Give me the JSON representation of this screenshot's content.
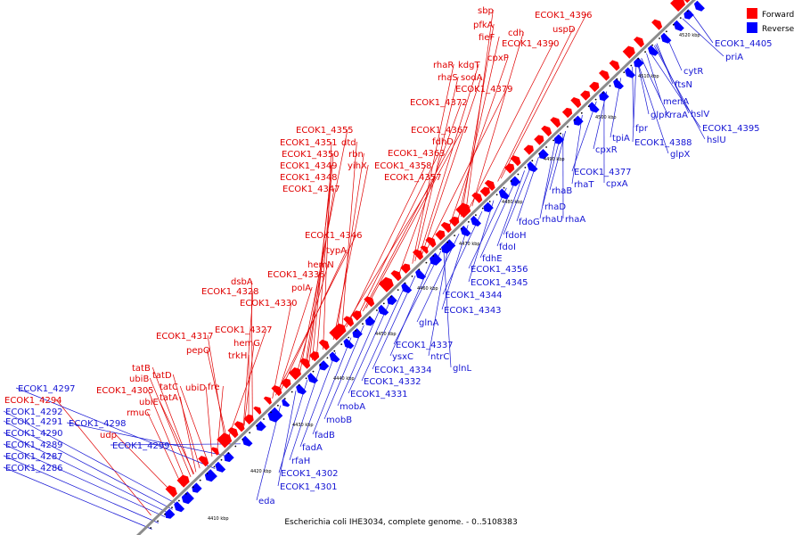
{
  "caption": "Escherichia coli IHE3034, complete genome. - 0..5108383",
  "legend": [
    {
      "label": "Forward",
      "color": "#ff0000"
    },
    {
      "label": "Reverse",
      "color": "#0000ff"
    }
  ],
  "colors": {
    "forward": "#ff0000",
    "reverse": "#0000ff",
    "forward_label": "#e00000",
    "reverse_label": "#1414d4",
    "backbone": "#909090"
  },
  "ticks": [
    "4410 kbp",
    "4420 kbp",
    "4430 kbp",
    "4440 kbp",
    "4450 kbp",
    "4460 kbp",
    "4470 kbp",
    "4480 kbp",
    "4490 kbp",
    "4500 kbp",
    "4510 kbp",
    "4520 kbp"
  ],
  "forward_labels": [
    "sbp",
    "pfkA",
    "cdh",
    "fieF",
    "ECOK1_4396",
    "uspD",
    "ECOK1_4390",
    "cpxP",
    "rhaR",
    "kdgT",
    "rhaS",
    "sodA",
    "ECOK1_4379",
    "ECOK1_4372",
    "ECOK1_4367",
    "ECOK1_4355",
    "fdhD",
    "ECOK1_4351",
    "dtd",
    "ECOK1_4363",
    "ECOK1_4350",
    "rbn",
    "ECOK1_4349",
    "yihX",
    "ECOK1_4358",
    "ECOK1_4348",
    "ECOK1_4357",
    "ECOK1_4347",
    "ECOK1_4346",
    "typA",
    "hemN",
    "dsbA",
    "ECOK1_4336",
    "ECOK1_4328",
    "polA",
    "ECOK1_4330",
    "ECOK1_4327",
    "ECOK1_4317",
    "hemG",
    "pepQ",
    "trkH",
    "tatB",
    "ubiB",
    "tatD",
    "tatC",
    "ubiD",
    "fre",
    "ECOK1_4305",
    "ubiE",
    "tatA",
    "rmuC",
    "ECOK1_4294",
    "udp"
  ],
  "reverse_labels": [
    "ECOK1_4405",
    "priA",
    "cytR",
    "ftsN",
    "menA",
    "hslV",
    "glpK",
    "rraA",
    "ECOK1_4395",
    "hslU",
    "fpr",
    "ECOK1_4388",
    "tpiA",
    "glpX",
    "cpxR",
    "ECOK1_4377",
    "cpxA",
    "rhaT",
    "rhaB",
    "rhaD",
    "rhaU",
    "rhaA",
    "fdoG",
    "fdoH",
    "fdoI",
    "fdhE",
    "ECOK1_4356",
    "ECOK1_4345",
    "ECOK1_4344",
    "ECOK1_4343",
    "glnA",
    "ECOK1_4337",
    "ntrC",
    "ysxC",
    "glnL",
    "ECOK1_4334",
    "ECOK1_4332",
    "ECOK1_4331",
    "mobA",
    "mobB",
    "fadB",
    "fadA",
    "rfaH",
    "ECOK1_4302",
    "ECOK1_4301",
    "eda",
    "ECOK1_4297",
    "ECOK1_4292",
    "ECOK1_4291",
    "ECOK1_4298",
    "ECOK1_4290",
    "ECOK1_4299",
    "ECOK1_4289",
    "ECOK1_4287",
    "ECOK1_4286"
  ]
}
